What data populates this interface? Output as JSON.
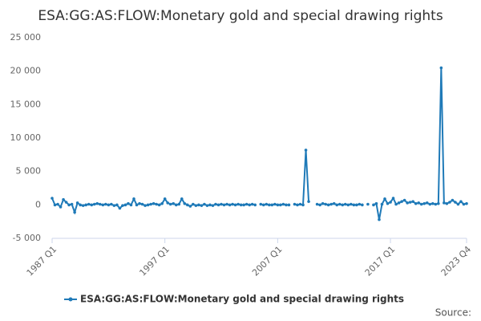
{
  "chart_data": {
    "type": "line",
    "title": "ESA:GG:AS:FLOW:Monetary gold and special drawing rights",
    "source_label": "Source:",
    "categories": [
      "1987 Q1",
      null,
      null,
      null,
      null,
      null,
      null,
      null,
      null,
      null,
      null,
      null,
      null,
      null,
      null,
      null,
      null,
      null,
      null,
      null,
      null,
      null,
      null,
      null,
      null,
      null,
      null,
      null,
      null,
      null,
      null,
      null,
      null,
      null,
      null,
      null,
      null,
      null,
      null,
      null,
      "1997 Q1",
      null,
      null,
      null,
      null,
      null,
      null,
      null,
      null,
      null,
      null,
      null,
      null,
      null,
      null,
      null,
      null,
      null,
      null,
      null,
      null,
      null,
      null,
      null,
      null,
      null,
      null,
      null,
      null,
      null,
      null,
      null,
      null,
      null,
      null,
      null,
      null,
      null,
      null,
      null,
      "2007 Q1",
      null,
      null,
      null,
      null,
      null,
      null,
      null,
      null,
      null,
      null,
      null,
      null,
      null,
      null,
      null,
      null,
      null,
      null,
      null,
      null,
      null,
      null,
      null,
      null,
      null,
      null,
      null,
      null,
      null,
      null,
      null,
      null,
      null,
      null,
      null,
      null,
      null,
      null,
      null,
      "2017 Q1",
      null,
      null,
      null,
      null,
      null,
      null,
      null,
      null,
      null,
      null,
      null,
      null,
      null,
      null,
      null,
      null,
      null,
      null,
      null,
      null,
      null,
      null,
      null,
      null,
      null,
      null,
      "2023 Q4"
    ],
    "series": [
      {
        "name": "ESA:GG:AS:FLOW:Monetary gold and special drawing rights",
        "color": "#1f7ab8",
        "values": [
          1000,
          0,
          100,
          -300,
          800,
          400,
          0,
          100,
          -1100,
          300,
          0,
          -100,
          0,
          100,
          0,
          100,
          200,
          100,
          0,
          100,
          0,
          100,
          -100,
          0,
          -500,
          -100,
          0,
          200,
          0,
          900,
          0,
          200,
          100,
          -100,
          0,
          100,
          200,
          100,
          0,
          200,
          900,
          300,
          100,
          200,
          0,
          100,
          900,
          200,
          0,
          -200,
          100,
          -100,
          0,
          -100,
          100,
          -100,
          0,
          -100,
          100,
          0,
          100,
          0,
          100,
          0,
          100,
          0,
          100,
          0,
          0,
          100,
          0,
          100,
          0,
          null,
          100,
          0,
          100,
          0,
          0,
          100,
          0,
          0,
          100,
          0,
          0,
          null,
          100,
          0,
          100,
          0,
          8200,
          500,
          null,
          null,
          100,
          0,
          200,
          100,
          0,
          100,
          200,
          0,
          100,
          0,
          100,
          0,
          100,
          0,
          0,
          100,
          0,
          null,
          100,
          null,
          0,
          200,
          -2200,
          100,
          900,
          200,
          400,
          1000,
          100,
          300,
          500,
          700,
          300,
          400,
          500,
          200,
          300,
          100,
          200,
          300,
          100,
          200,
          100,
          200,
          20500,
          300,
          200,
          400,
          700,
          400,
          100,
          500,
          100,
          200
        ]
      }
    ],
    "ylim": [
      -5000,
      25000
    ],
    "yticks": [
      {
        "value": -5000,
        "label": "-5 000"
      },
      0,
      {
        "value": 5000,
        "label": "5 000"
      },
      {
        "value": 10000,
        "label": "10 000"
      },
      {
        "value": 15000,
        "label": "15 000"
      },
      {
        "value": 20000,
        "label": "20 000"
      },
      {
        "value": 25000,
        "label": "25 000"
      }
    ],
    "grid": false,
    "legend": "bottom"
  }
}
